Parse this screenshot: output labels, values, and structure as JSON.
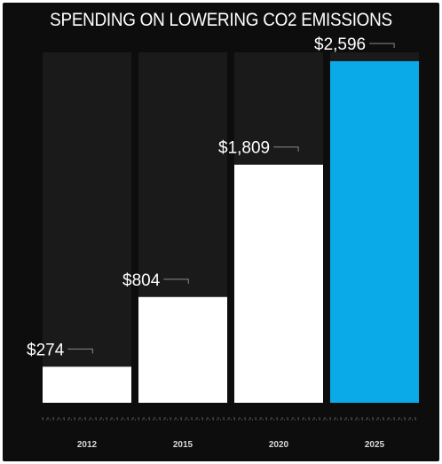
{
  "chart_data": {
    "type": "bar",
    "title": "SPENDING ON LOWERING CO2 EMISSIONS",
    "categories": [
      "2012",
      "2015",
      "2020",
      "2025"
    ],
    "values": [
      274,
      804,
      1809,
      2596
    ],
    "value_labels": [
      "$274",
      "$804",
      "$1,809",
      "$2,596"
    ],
    "xlabel": "",
    "ylabel": "",
    "ylim": [
      0,
      2600
    ],
    "grid": false,
    "legend": "none",
    "colors": {
      "background": "#0d0d0d",
      "bar_default": "#ffffff",
      "bar_highlight": "#0aa9e8",
      "text": "#ffffff"
    },
    "highlight_index": 3
  }
}
